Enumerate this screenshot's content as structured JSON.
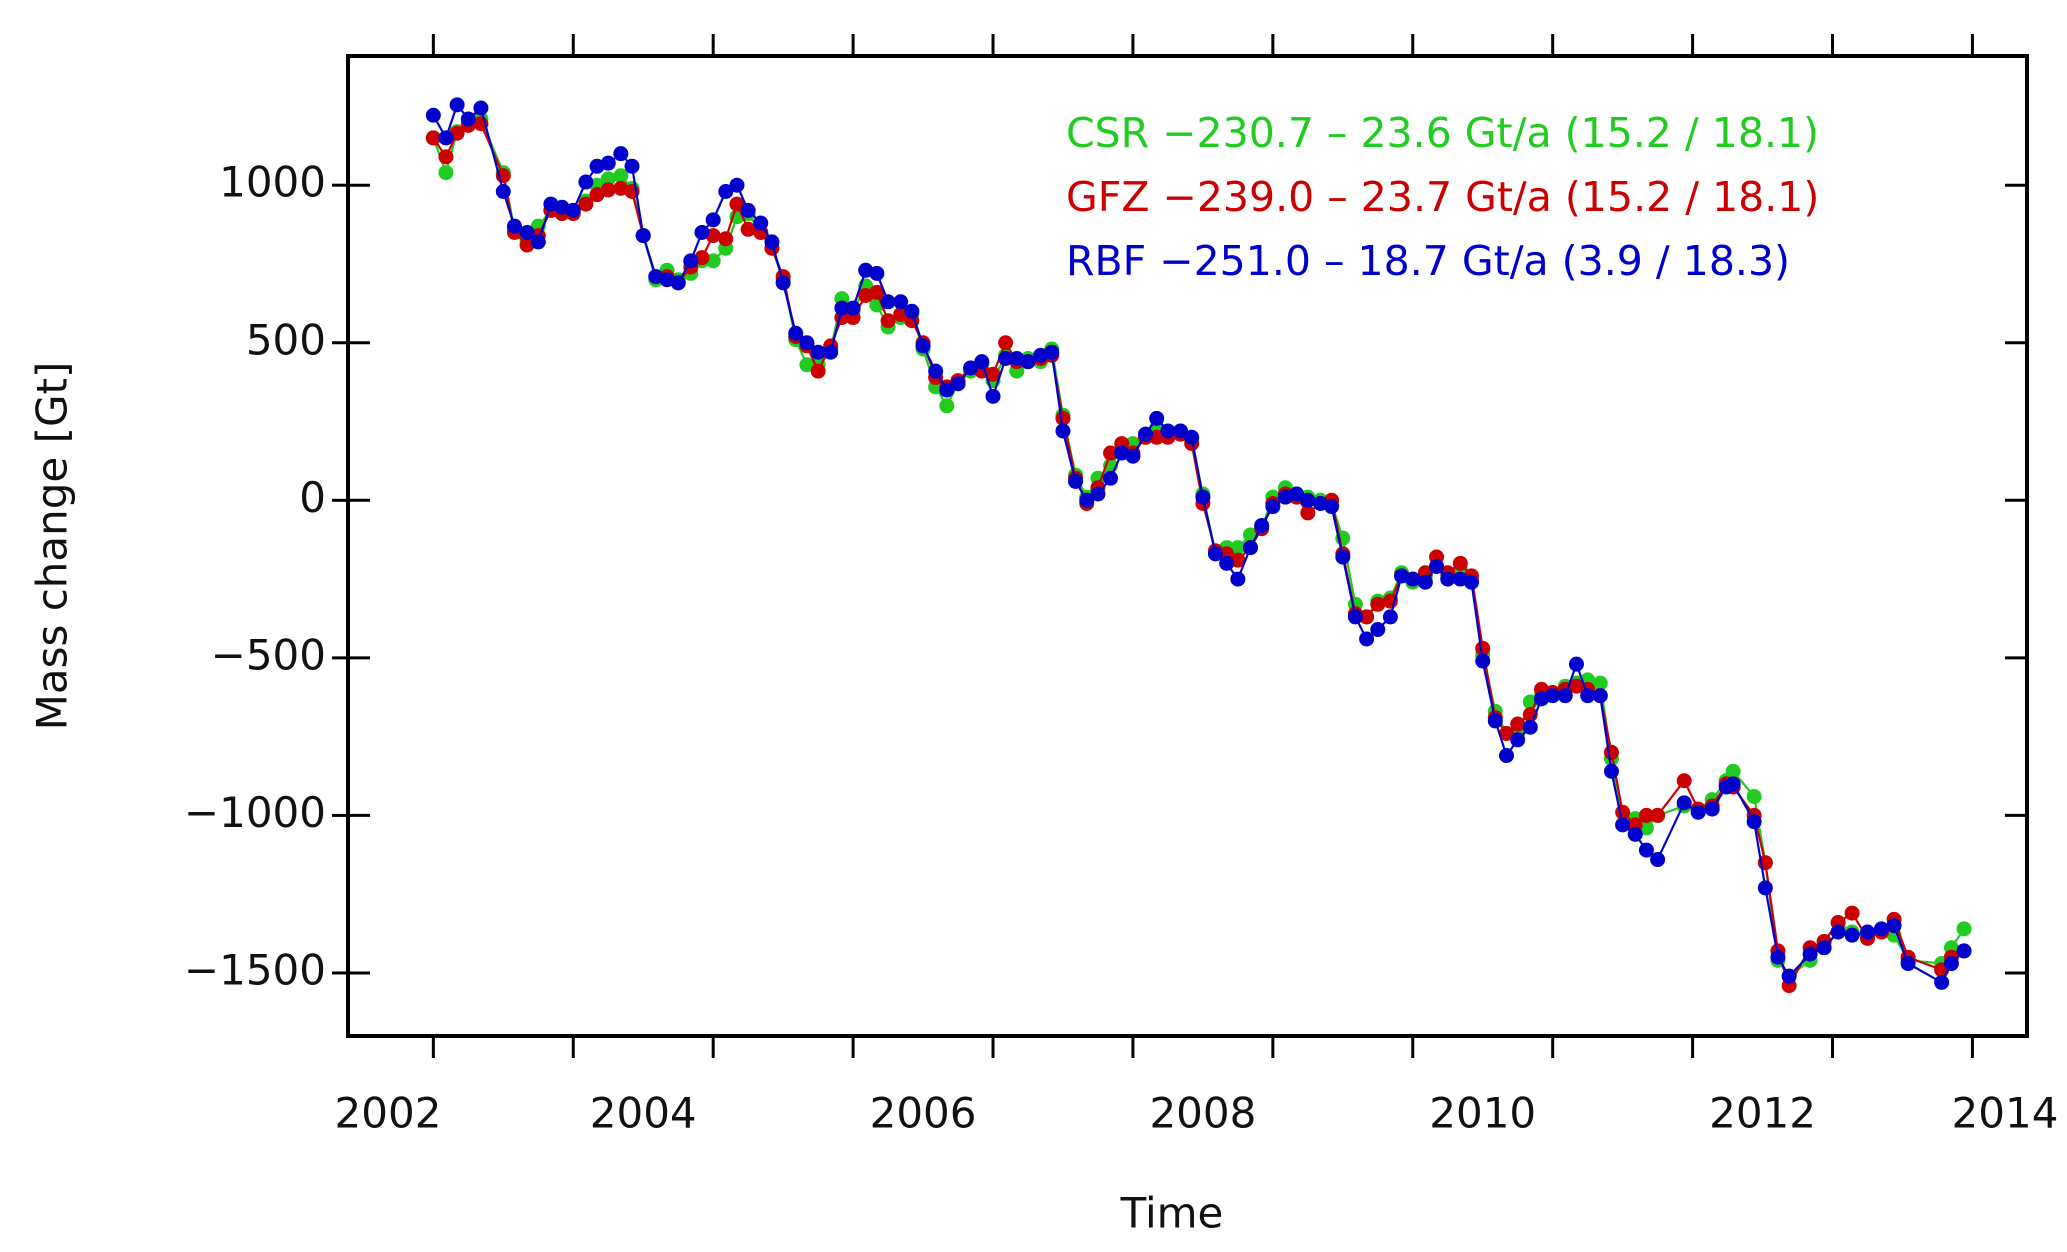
{
  "chart_data": {
    "type": "line",
    "xlabel": "Time",
    "ylabel": "Mass change [Gt]",
    "xlim": [
      2001.89,
      2013.89
    ],
    "ylim": [
      -1700,
      1410
    ],
    "xticks": [
      2002,
      2004,
      2006,
      2008,
      2010,
      2012,
      2014
    ],
    "xminor": [
      2002.5,
      2003.5,
      2004.5,
      2005.5,
      2006.5,
      2007.5,
      2008.5,
      2009.5,
      2010.5,
      2011.5,
      2012.5,
      2013.5
    ],
    "yticks": [
      {
        "value": -1500,
        "label": "−1500"
      },
      {
        "value": -1000,
        "label": "−1000"
      },
      {
        "value": -500,
        "label": "−500"
      },
      0,
      500,
      1000
    ],
    "grid": false,
    "x": [
      2002.5,
      2002.59,
      2002.67,
      2002.75,
      2002.84,
      2003.0,
      2003.08,
      2003.17,
      2003.25,
      2003.34,
      2003.42,
      2003.5,
      2003.59,
      2003.67,
      2003.75,
      2003.84,
      2003.92,
      2004.0,
      2004.09,
      2004.17,
      2004.25,
      2004.34,
      2004.42,
      2004.5,
      2004.59,
      2004.67,
      2004.75,
      2004.84,
      2004.92,
      2005.0,
      2005.09,
      2005.17,
      2005.25,
      2005.34,
      2005.42,
      2005.5,
      2005.59,
      2005.67,
      2005.75,
      2005.84,
      2005.92,
      2006.0,
      2006.09,
      2006.17,
      2006.25,
      2006.34,
      2006.42,
      2006.5,
      2006.59,
      2006.67,
      2006.75,
      2006.84,
      2006.92,
      2007.0,
      2007.09,
      2007.17,
      2007.25,
      2007.34,
      2007.42,
      2007.5,
      2007.59,
      2007.67,
      2007.75,
      2007.84,
      2007.92,
      2008.0,
      2008.09,
      2008.17,
      2008.25,
      2008.34,
      2008.42,
      2008.5,
      2008.59,
      2008.67,
      2008.75,
      2008.84,
      2008.92,
      2009.0,
      2009.09,
      2009.17,
      2009.25,
      2009.34,
      2009.42,
      2009.5,
      2009.59,
      2009.67,
      2009.75,
      2009.84,
      2009.92,
      2010.0,
      2010.09,
      2010.17,
      2010.25,
      2010.34,
      2010.42,
      2010.5,
      2010.59,
      2010.67,
      2010.75,
      2010.84,
      2010.92,
      2011.0,
      2011.09,
      2011.17,
      2011.25,
      2011.44,
      2011.54,
      2011.64,
      2011.74,
      2011.79,
      2011.94,
      2012.02,
      2012.11,
      2012.19,
      2012.34,
      2012.44,
      2012.54,
      2012.64,
      2012.75,
      2012.85,
      2012.94,
      2013.04,
      2013.28,
      2013.35,
      2013.44
    ],
    "series": [
      {
        "name": "CSR −230.7 – 23.6 Gt/a (15.2 / 18.1)",
        "color": "#1fcc1f",
        "values": [
          1150,
          1040,
          1170,
          1200,
          1210,
          1040,
          860,
          820,
          870,
          920,
          910,
          920,
          950,
          1000,
          1020,
          1030,
          990,
          840,
          700,
          730,
          700,
          720,
          760,
          760,
          800,
          900,
          910,
          850,
          800,
          700,
          510,
          430,
          430,
          480,
          640,
          600,
          680,
          620,
          550,
          580,
          590,
          480,
          360,
          300,
          370,
          410,
          430,
          380,
          460,
          410,
          450,
          440,
          480,
          270,
          80,
          10,
          70,
          110,
          160,
          180,
          200,
          230,
          210,
          220,
          190,
          20,
          -170,
          -150,
          -150,
          -110,
          -90,
          10,
          40,
          20,
          10,
          0,
          -10,
          -120,
          -330,
          -370,
          -320,
          -310,
          -230,
          -260,
          -240,
          -210,
          -240,
          -220,
          -260,
          -490,
          -670,
          -740,
          -740,
          -640,
          -620,
          -610,
          -590,
          -580,
          -570,
          -580,
          -820,
          -1030,
          -1010,
          -1040,
          -1000,
          -970,
          -980,
          -950,
          -890,
          -860,
          -940,
          -1150,
          -1460,
          -1510,
          -1460,
          -1400,
          -1340,
          -1370,
          -1390,
          -1370,
          -1380,
          -1460,
          -1470,
          -1420,
          -1360
        ]
      },
      {
        "name": "GFZ −239.0 – 23.7 Gt/a (15.2 / 18.1)",
        "color": "#cc0000",
        "values": [
          1150,
          1090,
          1165,
          1190,
          1195,
          1030,
          850,
          810,
          840,
          920,
          910,
          910,
          940,
          970,
          985,
          990,
          980,
          840,
          710,
          710,
          690,
          740,
          770,
          840,
          830,
          940,
          860,
          850,
          800,
          710,
          520,
          490,
          410,
          490,
          580,
          580,
          650,
          660,
          570,
          590,
          570,
          500,
          390,
          360,
          380,
          420,
          410,
          400,
          500,
          440,
          440,
          450,
          460,
          260,
          70,
          -10,
          40,
          150,
          180,
          150,
          200,
          200,
          200,
          210,
          180,
          -10,
          -160,
          -170,
          -190,
          -150,
          -90,
          -10,
          20,
          10,
          -40,
          -10,
          0,
          -170,
          -360,
          -370,
          -330,
          -320,
          -240,
          -250,
          -230,
          -180,
          -230,
          -200,
          -240,
          -470,
          -690,
          -740,
          -710,
          -680,
          -600,
          -610,
          -600,
          -590,
          -600,
          -620,
          -800,
          -990,
          -1030,
          -1000,
          -1000,
          -890,
          -980,
          -970,
          -900,
          -910,
          -1000,
          -1150,
          -1430,
          -1540,
          -1420,
          -1400,
          -1340,
          -1310,
          -1390,
          -1370,
          -1330,
          -1450,
          -1490,
          -1450,
          -1430
        ]
      },
      {
        "name": "RBF −251.0 – 18.7 Gt/a (3.9 / 18.3)",
        "color": "#0000cc",
        "values": [
          1222,
          1150,
          1255,
          1210,
          1245,
          980,
          870,
          850,
          820,
          940,
          930,
          920,
          1010,
          1060,
          1070,
          1100,
          1060,
          840,
          710,
          700,
          690,
          760,
          850,
          890,
          980,
          1000,
          920,
          880,
          820,
          690,
          530,
          500,
          470,
          470,
          610,
          610,
          730,
          720,
          630,
          630,
          600,
          490,
          410,
          350,
          370,
          420,
          440,
          330,
          450,
          450,
          440,
          460,
          470,
          220,
          60,
          0,
          20,
          70,
          150,
          140,
          210,
          260,
          220,
          220,
          200,
          10,
          -170,
          -200,
          -250,
          -150,
          -80,
          -20,
          10,
          20,
          0,
          -10,
          -20,
          -180,
          -370,
          -440,
          -410,
          -370,
          -240,
          -250,
          -260,
          -210,
          -250,
          -250,
          -260,
          -510,
          -700,
          -810,
          -760,
          -720,
          -630,
          -620,
          -620,
          -520,
          -620,
          -620,
          -860,
          -1030,
          -1060,
          -1110,
          -1140,
          -960,
          -990,
          -980,
          -910,
          -900,
          -1020,
          -1230,
          -1450,
          -1510,
          -1440,
          -1420,
          -1370,
          -1380,
          -1370,
          -1360,
          -1350,
          -1470,
          -1530,
          -1470,
          -1430
        ]
      }
    ]
  }
}
